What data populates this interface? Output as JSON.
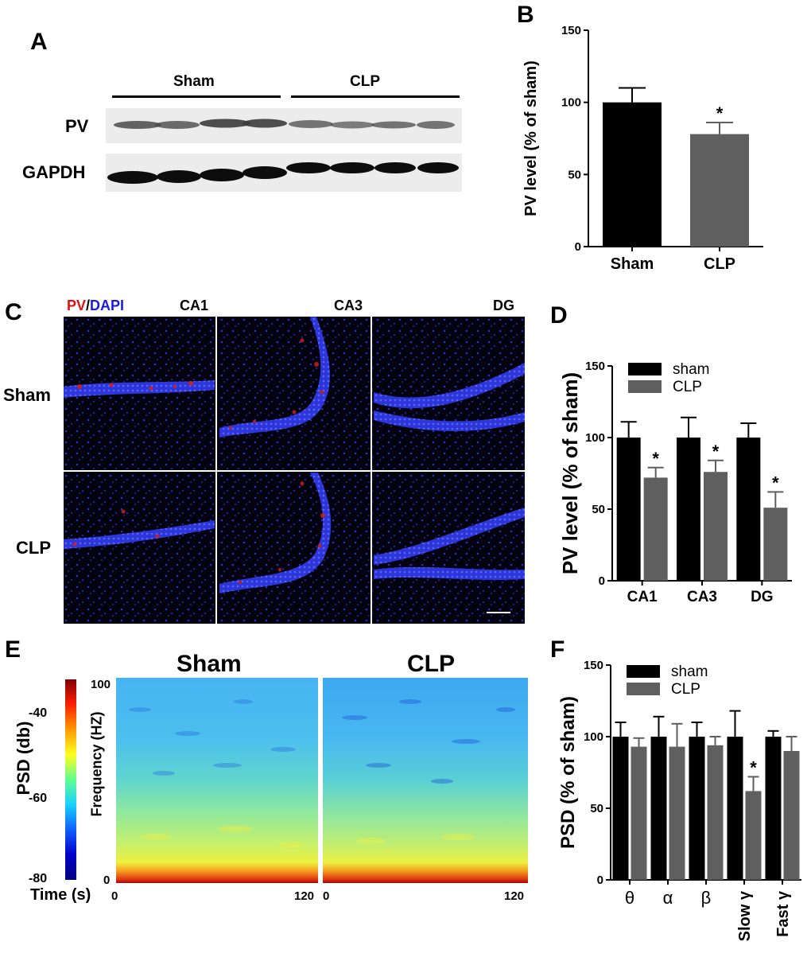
{
  "panels": {
    "A": {
      "label": "A",
      "groups": [
        "Sham",
        "CLP"
      ],
      "rows": [
        "PV",
        "GAPDH"
      ]
    },
    "C": {
      "label": "C",
      "stain_pv": "PV",
      "stain_sep": "/",
      "stain_dapi": "DAPI",
      "regions": [
        "CA1",
        "CA3",
        "DG"
      ],
      "rows": [
        "Sham",
        "CLP"
      ]
    },
    "E": {
      "label": "E",
      "titles": [
        "Sham",
        "CLP"
      ],
      "colorbar_label": "PSD (db)",
      "colorbar_ticks": [
        "-40",
        "-60",
        "-80"
      ],
      "freq_label": "Frequency (HZ)",
      "freq_ticks": [
        "100",
        "0"
      ],
      "time_label": "Time (s)",
      "time_ticks": [
        "0",
        "120",
        "0",
        "120"
      ]
    }
  },
  "chart_data": [
    {
      "panel": "B",
      "type": "bar",
      "categories": [
        "Sham",
        "CLP"
      ],
      "values": [
        100,
        78
      ],
      "errors": [
        10,
        8
      ],
      "significant": [
        false,
        true
      ],
      "colors": [
        "#000000",
        "#5f5f5f"
      ],
      "ylabel": "PV level (% of sham)",
      "ylim": [
        0,
        150
      ],
      "yticks": [
        "0",
        "50",
        "100",
        "150"
      ],
      "marker": "*"
    },
    {
      "panel": "D",
      "type": "bar",
      "categories": [
        "CA1",
        "CA3",
        "DG"
      ],
      "series": [
        {
          "name": "sham",
          "values": [
            100,
            100,
            100
          ],
          "errors": [
            11,
            14,
            10
          ],
          "significant": [
            false,
            false,
            false
          ],
          "color": "#000000"
        },
        {
          "name": "CLP",
          "values": [
            72,
            76,
            51
          ],
          "errors": [
            7,
            8,
            11
          ],
          "significant": [
            true,
            true,
            true
          ],
          "color": "#5f5f5f"
        }
      ],
      "ylabel": "PV level (% of sham)",
      "ylim": [
        0,
        150
      ],
      "yticks": [
        "0",
        "50",
        "100",
        "150"
      ],
      "legend": "top-left",
      "marker": "*"
    },
    {
      "panel": "F",
      "type": "bar",
      "categories": [
        "θ",
        "α",
        "β",
        "Slow γ",
        "Fast γ"
      ],
      "series": [
        {
          "name": "sham",
          "values": [
            100,
            100,
            100,
            100,
            100
          ],
          "errors": [
            10,
            14,
            10,
            18,
            4
          ],
          "significant": [
            false,
            false,
            false,
            false,
            false
          ],
          "color": "#000000"
        },
        {
          "name": "CLP",
          "values": [
            93,
            93,
            94,
            62,
            90
          ],
          "errors": [
            6,
            16,
            6,
            10,
            10
          ],
          "significant": [
            false,
            false,
            false,
            true,
            false
          ],
          "color": "#5f5f5f"
        }
      ],
      "ylabel": "PSD (% of sham)",
      "ylim": [
        0,
        150
      ],
      "yticks": [
        "0",
        "50",
        "100",
        "150"
      ],
      "legend": "top-left",
      "marker": "*"
    }
  ]
}
